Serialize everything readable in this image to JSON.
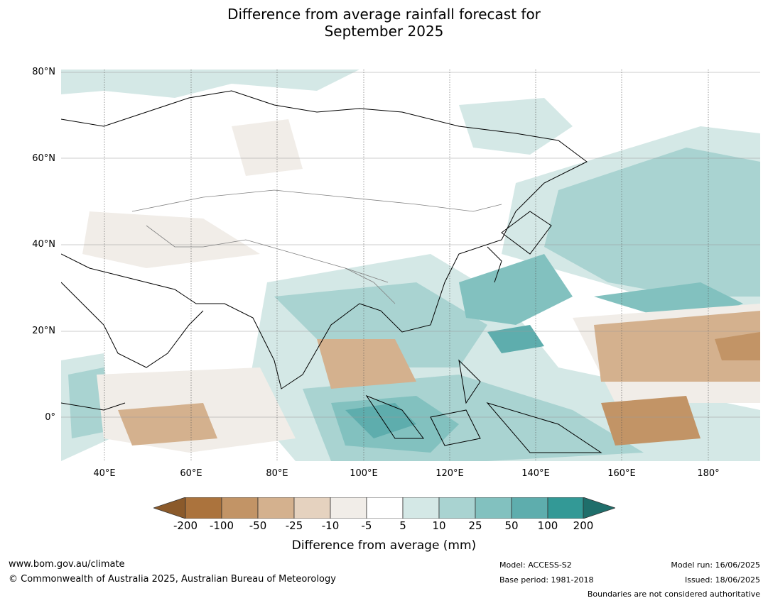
{
  "title_line1": "Difference from average rainfall forecast for",
  "title_line2": "September 2025",
  "lat_labels": [
    "80°N",
    "60°N",
    "40°N",
    "20°N",
    "0°"
  ],
  "lon_labels": [
    "40°E",
    "60°E",
    "80°E",
    "100°E",
    "120°E",
    "140°E",
    "160°E",
    "180°"
  ],
  "colorbar": {
    "ticks": [
      "-200",
      "-100",
      "-50",
      "-25",
      "-10",
      "-5",
      "5",
      "10",
      "25",
      "50",
      "100",
      "200"
    ],
    "colors": [
      "#8b5a2b",
      "#ab733d",
      "#c29466",
      "#d4b18e",
      "#e5d2bf",
      "#f1ede8",
      "#ffffff",
      "#d4e8e6",
      "#a9d3d1",
      "#82c1bf",
      "#5eadad",
      "#339996",
      "#1f6e6b"
    ],
    "label": "Difference from average (mm)"
  },
  "footer": {
    "website": "www.bom.gov.au/climate",
    "copyright": "© Commonwealth of Australia 2025, Australian Bureau of Meteorology",
    "model": "Model: ACCESS-S2",
    "base_period": "Base period: 1981-2018",
    "model_run": "Model run: 16/06/2025",
    "issued": "Issued: 18/06/2025",
    "disclaimer": "Boundaries are not considered authoritative"
  }
}
